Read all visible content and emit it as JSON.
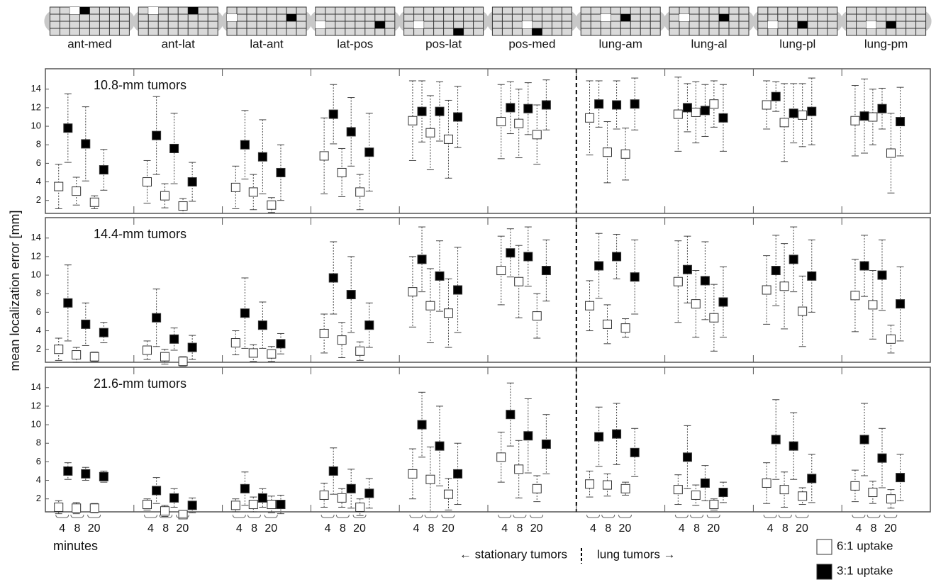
{
  "chart_data": {
    "type": "errorbar",
    "ylabel": "mean localization error [mm]",
    "xlabel": "minutes",
    "groups": [
      "ant-med",
      "ant-lat",
      "lat-ant",
      "lat-pos",
      "pos-lat",
      "pos-med",
      "lung-am",
      "lung-al",
      "lung-pl",
      "lung-pm"
    ],
    "times": [
      4,
      8,
      20
    ],
    "annotations": [
      "← stationary tumors",
      "lung tumors →"
    ],
    "ylim": [
      0.6,
      16.2
    ],
    "yticks": [
      2,
      4,
      6,
      8,
      10,
      12,
      14
    ],
    "series": [
      {
        "name": "6:1 uptake",
        "color": "#ffffff"
      },
      {
        "name": "3:1 uptake",
        "color": "#000000"
      }
    ],
    "legend": "bottom-right",
    "panels": [
      {
        "title": "10.8-mm tumors",
        "values": [
          [
            3.5,
            3.0,
            1.8,
            4.0,
            2.5,
            1.4,
            3.4,
            2.9,
            1.5,
            6.8,
            5.0,
            2.9,
            10.6,
            9.3,
            8.6,
            10.5,
            10.3,
            9.1,
            10.9,
            7.2,
            7.0,
            11.3,
            11.5,
            12.4,
            12.3,
            10.4,
            11.2,
            10.6,
            11.0,
            7.1
          ],
          [
            9.8,
            8.1,
            5.3,
            9.0,
            7.6,
            4.0,
            8.0,
            6.7,
            5.0,
            11.3,
            9.4,
            7.2,
            11.6,
            11.6,
            11.0,
            12.0,
            11.9,
            12.3,
            12.4,
            12.3,
            12.4,
            12.0,
            11.7,
            10.9,
            13.2,
            11.4,
            11.6,
            11.1,
            11.9,
            10.5
          ]
        ],
        "errors": [
          [
            2.4,
            1.5,
            0.7,
            2.3,
            1.3,
            0.8,
            2.3,
            1.9,
            0.8,
            4.1,
            2.6,
            1.9,
            4.3,
            4.0,
            4.2,
            4.0,
            3.7,
            3.2,
            4.0,
            3.3,
            2.8,
            4.0,
            3.3,
            2.5,
            2.6,
            4.2,
            3.4,
            3.8,
            3.0,
            4.3
          ],
          [
            3.7,
            4.0,
            2.2,
            4.2,
            3.8,
            2.1,
            3.7,
            4.0,
            3.0,
            3.2,
            3.7,
            4.2,
            3.3,
            3.2,
            3.3,
            2.8,
            2.8,
            2.7,
            2.5,
            2.6,
            2.8,
            2.6,
            2.8,
            3.6,
            1.6,
            3.2,
            3.6,
            4.0,
            2.2,
            3.7
          ]
        ]
      },
      {
        "title": "14.4-mm tumors",
        "values": [
          [
            2.0,
            1.4,
            1.2,
            1.9,
            1.2,
            0.7,
            2.7,
            1.6,
            1.5,
            3.7,
            3.0,
            1.8,
            8.2,
            6.7,
            5.9,
            10.5,
            9.3,
            5.6,
            6.7,
            4.7,
            4.3,
            9.3,
            6.9,
            5.4,
            8.4,
            8.8,
            6.1,
            7.8,
            6.8,
            3.1
          ],
          [
            7.0,
            4.7,
            3.8,
            5.4,
            3.1,
            2.2,
            5.9,
            4.6,
            2.6,
            9.7,
            7.9,
            4.6,
            11.7,
            9.9,
            8.4,
            12.4,
            12.0,
            10.5,
            11.0,
            12.0,
            9.8,
            10.6,
            9.4,
            7.1,
            10.5,
            11.7,
            9.9,
            11.0,
            10.0,
            6.9
          ]
        ],
        "errors": [
          [
            1.2,
            0.8,
            0.5,
            1.0,
            0.8,
            0.5,
            1.3,
            0.9,
            0.8,
            2.1,
            1.9,
            1.0,
            3.8,
            4.0,
            3.7,
            3.7,
            3.9,
            2.4,
            2.7,
            2.1,
            1.0,
            4.4,
            3.6,
            3.6,
            3.7,
            4.6,
            3.8,
            3.9,
            3.7,
            1.5
          ],
          [
            4.1,
            2.3,
            1.1,
            3.1,
            1.2,
            1.3,
            3.8,
            2.5,
            1.1,
            3.9,
            4.1,
            2.4,
            3.5,
            3.8,
            4.6,
            2.6,
            3.2,
            3.3,
            3.5,
            2.4,
            4.0,
            3.6,
            4.2,
            3.8,
            3.8,
            3.5,
            3.9,
            3.3,
            3.8,
            4.0
          ]
        ]
      },
      {
        "title": "21.6-mm tumors",
        "values": [
          [
            1.1,
            1.0,
            1.0,
            1.4,
            0.7,
            0.3,
            1.3,
            1.4,
            1.4,
            2.4,
            2.1,
            1.1,
            4.7,
            4.1,
            2.5,
            6.5,
            5.2,
            3.1,
            3.6,
            3.5,
            3.1,
            3.0,
            2.4,
            1.4,
            3.7,
            3.0,
            2.3,
            3.4,
            2.7,
            2.0
          ],
          [
            5.0,
            4.7,
            4.4,
            2.9,
            2.1,
            1.3,
            3.1,
            2.1,
            1.4,
            5.0,
            3.1,
            2.6,
            10.0,
            7.7,
            4.7,
            11.1,
            8.8,
            7.9,
            8.7,
            9.0,
            7.0,
            6.5,
            3.7,
            2.7,
            8.4,
            7.7,
            4.2,
            8.4,
            6.4,
            4.3
          ]
        ],
        "errors": [
          [
            0.7,
            0.6,
            0.5,
            0.6,
            0.6,
            0.3,
            0.7,
            0.8,
            0.9,
            1.3,
            1.0,
            0.9,
            2.7,
            3.5,
            1.7,
            2.7,
            3.1,
            1.4,
            1.4,
            1.2,
            0.7,
            1.6,
            1.1,
            0.6,
            2.2,
            1.9,
            0.9,
            1.7,
            1.2,
            1.0
          ],
          [
            0.9,
            0.7,
            0.6,
            1.4,
            1.0,
            0.8,
            1.8,
            1.0,
            1.0,
            2.5,
            2.1,
            1.6,
            3.5,
            4.3,
            3.3,
            3.4,
            4.0,
            3.2,
            3.2,
            3.3,
            2.6,
            3.4,
            1.9,
            1.1,
            4.3,
            3.6,
            2.6,
            3.9,
            3.2,
            2.5
          ]
        ]
      }
    ]
  }
}
